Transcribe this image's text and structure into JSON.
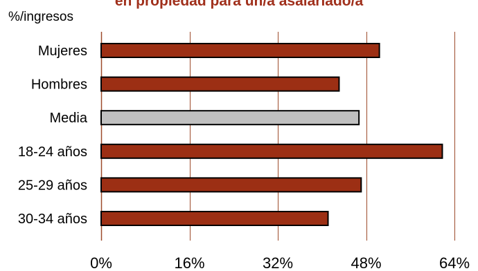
{
  "chart_data": {
    "type": "bar",
    "orientation": "horizontal",
    "title": "en propiedad para un/a asalariado/a",
    "unit_label": "%/ingresos",
    "categories": [
      "Mujeres",
      "Hombres",
      "Media",
      "18-24 años",
      "25-29 años",
      "30-34 años"
    ],
    "values": [
      50.4,
      43.1,
      46.7,
      61.8,
      47.1,
      41.1
    ],
    "xlim": [
      0,
      64
    ],
    "x_ticks": [
      0,
      16,
      32,
      48,
      64
    ],
    "x_tick_labels": [
      "0%",
      "16%",
      "32%",
      "48%",
      "64%"
    ],
    "grid": "vertical lines",
    "legend": "none",
    "colors": {
      "bar": "#9c2f14",
      "highlight_bar": "#c0c0c0",
      "bar_stroke": "#000000",
      "grid": "#9c4a2a",
      "title": "#a0301c"
    },
    "highlight_category": "Media"
  }
}
